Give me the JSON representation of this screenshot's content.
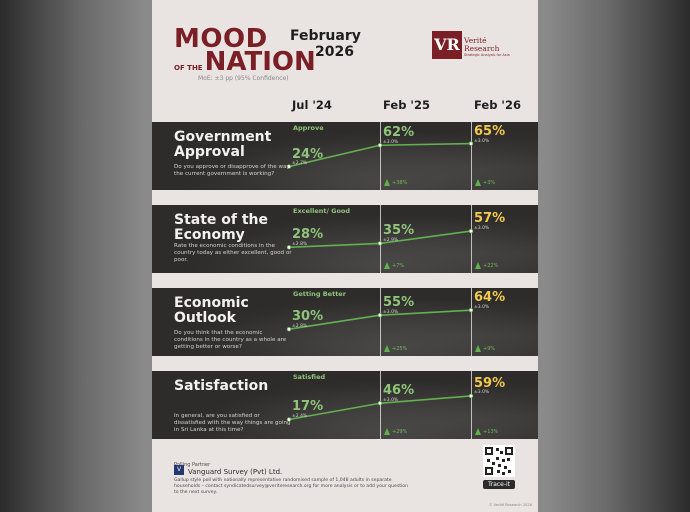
{
  "header": {
    "brand_line1": "MOOD",
    "brand_ofthe": "OF THE",
    "brand_line2": "NATION",
    "date_month": "February",
    "date_year": "2026",
    "moe": "MoE: ±3 pp (95% Confidence)",
    "logo_initials": "VR",
    "logo_name_1": "Verité",
    "logo_name_2": "Research",
    "logo_tagline": "Strategic Analysis for Asia"
  },
  "columns": [
    "Jul '24",
    "Feb '25",
    "Feb '26"
  ],
  "chart_data": [
    {
      "type": "line",
      "title": "Government Approval",
      "description": "Do you approve or disapprove of the way the current government is working?",
      "series_label": "Approve",
      "x": [
        "Jul '24",
        "Feb '25",
        "Feb '26"
      ],
      "values": [
        24,
        62,
        65
      ],
      "value_labels": [
        "24%",
        "62%",
        "65%"
      ],
      "moe_labels": [
        "±2.7%",
        "±3.0%",
        "±3.0%"
      ],
      "change_labels": [
        "+38%",
        "+3%"
      ]
    },
    {
      "type": "line",
      "title": "State of the Economy",
      "description": "Rate the economic conditions in the country today as either excellent, good or poor.",
      "series_label": "Excellent/ Good",
      "x": [
        "Jul '24",
        "Feb '25",
        "Feb '26"
      ],
      "values": [
        28,
        35,
        57
      ],
      "value_labels": [
        "28%",
        "35%",
        "57%"
      ],
      "moe_labels": [
        "±2.8%",
        "±2.9%",
        "±3.0%"
      ],
      "change_labels": [
        "+7%",
        "+22%"
      ]
    },
    {
      "type": "line",
      "title": "Economic Outlook",
      "description": "Do you think that the economic conditions in the country as a whole are getting better or worse?",
      "series_label": "Getting Better",
      "x": [
        "Jul '24",
        "Feb '25",
        "Feb '26"
      ],
      "values": [
        30,
        55,
        64
      ],
      "value_labels": [
        "30%",
        "55%",
        "64%"
      ],
      "moe_labels": [
        "±2.8%",
        "±3.0%",
        "±3.0%"
      ],
      "change_labels": [
        "+25%",
        "+9%"
      ]
    },
    {
      "type": "line",
      "title": "Satisfaction",
      "description": "In general, are you satisfied or dissatisfied with the way things are going in Sri Lanka at this time?",
      "series_label": "Satisfied",
      "x": [
        "Jul '24",
        "Feb '25",
        "Feb '26"
      ],
      "values": [
        17,
        46,
        59
      ],
      "value_labels": [
        "17%",
        "46%",
        "59%"
      ],
      "moe_labels": [
        "±2.4%",
        "±3.0%",
        "±3.0%"
      ],
      "change_labels": [
        "+29%",
        "+13%"
      ]
    }
  ],
  "footer": {
    "partner_label": "Polling Partner",
    "partner_logo": "V",
    "partner_name": "Vanguard Survey (Pvt) Ltd.",
    "note": "Gallup style poll with nationally representative randomised sample of 1,048 adults in separate households – contact syndicatedsurvey@veriteresearch.org for more analysis or to add your question to the next survey.",
    "trace_label": "Trace-it",
    "copyright": "© Verité Research 2026"
  },
  "colors": {
    "brand": "#7a1f25",
    "panel": "#2e2c2b",
    "green": "#8fc57a",
    "yellow": "#f2c94c"
  }
}
